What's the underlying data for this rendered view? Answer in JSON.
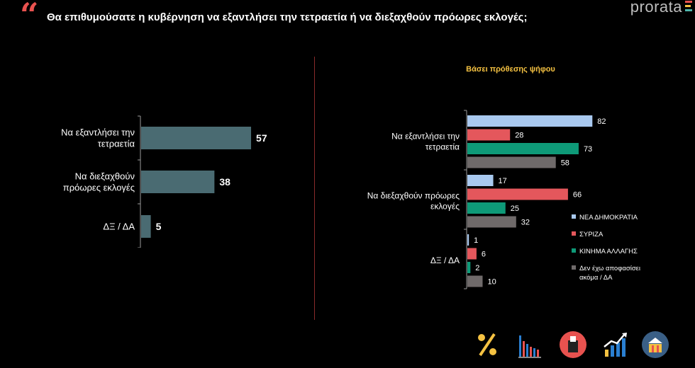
{
  "header": {
    "title": "Θα επιθυμούσατε η κυβέρνηση να εξαντλήσει την τετραετία ή να διεξαχθούν πρόωρες εκλογές;",
    "logo": "prorata"
  },
  "colors": {
    "accent": "#e8524f",
    "bar_total": "#4a6b72",
    "divider": "#8a2a2a",
    "subtitle": "#f5c242"
  },
  "chart_data": [
    {
      "type": "bar",
      "orientation": "horizontal",
      "categories": [
        [
          "Να εξαντλήσει την",
          "τετραετία"
        ],
        [
          "Να διεξαχθούν",
          "πρόωρες εκλογές"
        ],
        [
          "ΔΞ / ΔΑ"
        ]
      ],
      "values": [
        57,
        38,
        5
      ],
      "xlim": [
        0,
        100
      ]
    },
    {
      "type": "bar",
      "orientation": "horizontal",
      "title": "Βάσει πρόθεσης ψήφου",
      "categories": [
        [
          "Να εξαντλήσει την",
          "τετραετία"
        ],
        [
          "Να διεξαχθούν πρόωρες",
          "εκλογές"
        ],
        [
          "ΔΞ / ΔΑ"
        ]
      ],
      "series": [
        {
          "name": "ΝΕΑ ΔΗΜΟΚΡΑΤΙΑ",
          "color": "#a9c9ef",
          "values": [
            82,
            17,
            1
          ]
        },
        {
          "name": "ΣΥΡΙΖΑ",
          "color": "#e4575c",
          "values": [
            28,
            66,
            6
          ]
        },
        {
          "name": "ΚΙΝΗΜΑ ΑΛΛΑΓΗΣ",
          "color": "#0e9a78",
          "values": [
            73,
            25,
            2
          ]
        },
        {
          "name": "Δεν έχω αποφασίσει ακόμα / ΔΑ",
          "color": "#6f6a6a",
          "values": [
            58,
            32,
            10
          ]
        }
      ],
      "legend_position": "right",
      "xlim": [
        0,
        100
      ]
    }
  ],
  "footer_icons": [
    "percent-icon",
    "bar-chart-icon",
    "ballot-box-icon",
    "growth-chart-icon",
    "parliament-icon"
  ]
}
